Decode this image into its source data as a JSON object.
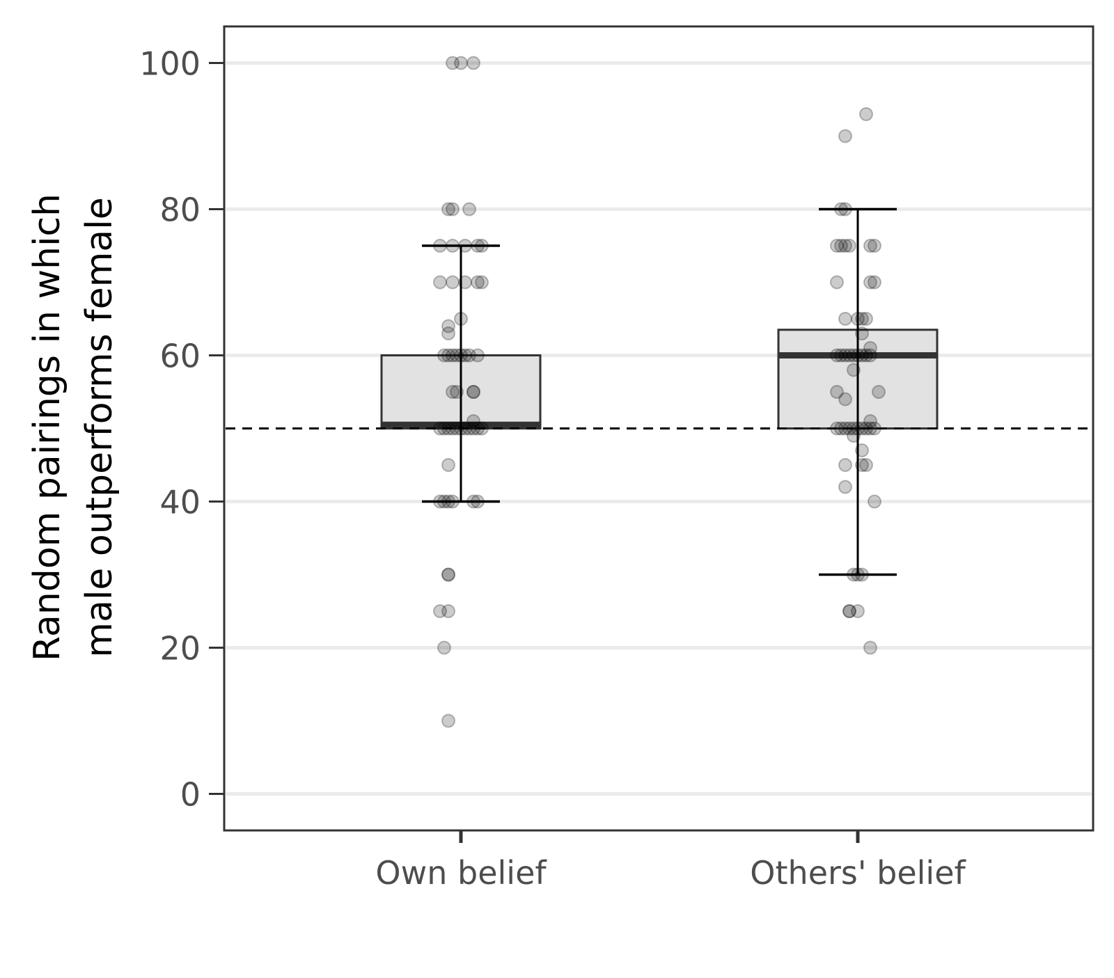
{
  "chart_data": {
    "type": "box",
    "categories": [
      "Own belief",
      "Others' belief"
    ],
    "ylabel": [
      "Random pairings in which",
      "male outperforms female"
    ],
    "xlabel": "",
    "ylim": [
      -5,
      105
    ],
    "yticks": [
      0,
      20,
      40,
      60,
      80,
      100
    ],
    "grid": "horizontal",
    "reference_line": {
      "y": 50,
      "style": "dashed"
    },
    "boxes": [
      {
        "category": "Own belief",
        "whisker_low": 40,
        "q1": 50,
        "median": 50.5,
        "q3": 60,
        "whisker_high": 75,
        "points": [
          {
            "x": -0.02,
            "y": 100
          },
          {
            "x": 0.0,
            "y": 100
          },
          {
            "x": 0.03,
            "y": 100
          },
          {
            "x": -0.03,
            "y": 80
          },
          {
            "x": -0.02,
            "y": 80
          },
          {
            "x": 0.02,
            "y": 80
          },
          {
            "x": -0.05,
            "y": 75
          },
          {
            "x": -0.02,
            "y": 75
          },
          {
            "x": 0.01,
            "y": 75
          },
          {
            "x": 0.04,
            "y": 75
          },
          {
            "x": 0.05,
            "y": 75
          },
          {
            "x": -0.05,
            "y": 70
          },
          {
            "x": -0.02,
            "y": 70
          },
          {
            "x": 0.01,
            "y": 70
          },
          {
            "x": 0.04,
            "y": 70
          },
          {
            "x": 0.05,
            "y": 70
          },
          {
            "x": 0.0,
            "y": 65
          },
          {
            "x": -0.03,
            "y": 64
          },
          {
            "x": -0.03,
            "y": 63
          },
          {
            "x": -0.04,
            "y": 60
          },
          {
            "x": -0.03,
            "y": 60
          },
          {
            "x": -0.02,
            "y": 60
          },
          {
            "x": -0.01,
            "y": 60
          },
          {
            "x": 0.0,
            "y": 60
          },
          {
            "x": 0.01,
            "y": 60
          },
          {
            "x": 0.02,
            "y": 60
          },
          {
            "x": 0.04,
            "y": 60
          },
          {
            "x": -0.02,
            "y": 55
          },
          {
            "x": -0.01,
            "y": 55
          },
          {
            "x": 0.03,
            "y": 55
          },
          {
            "x": 0.03,
            "y": 55
          },
          {
            "x": 0.03,
            "y": 51
          },
          {
            "x": -0.05,
            "y": 50
          },
          {
            "x": -0.04,
            "y": 50
          },
          {
            "x": -0.03,
            "y": 50
          },
          {
            "x": -0.02,
            "y": 50
          },
          {
            "x": -0.01,
            "y": 50
          },
          {
            "x": 0.0,
            "y": 50
          },
          {
            "x": 0.01,
            "y": 50
          },
          {
            "x": 0.02,
            "y": 50
          },
          {
            "x": 0.03,
            "y": 50
          },
          {
            "x": 0.04,
            "y": 50
          },
          {
            "x": 0.05,
            "y": 50
          },
          {
            "x": -0.03,
            "y": 45
          },
          {
            "x": -0.05,
            "y": 40
          },
          {
            "x": -0.04,
            "y": 40
          },
          {
            "x": -0.03,
            "y": 40
          },
          {
            "x": -0.02,
            "y": 40
          },
          {
            "x": 0.03,
            "y": 40
          },
          {
            "x": 0.04,
            "y": 40
          },
          {
            "x": -0.03,
            "y": 30
          },
          {
            "x": -0.03,
            "y": 30
          },
          {
            "x": -0.05,
            "y": 25
          },
          {
            "x": -0.03,
            "y": 25
          },
          {
            "x": -0.04,
            "y": 20
          },
          {
            "x": -0.03,
            "y": 10
          }
        ]
      },
      {
        "category": "Others' belief",
        "whisker_low": 30,
        "q1": 50,
        "median": 60,
        "q3": 63.5,
        "whisker_high": 80,
        "points": [
          {
            "x": 0.02,
            "y": 93
          },
          {
            "x": -0.03,
            "y": 90
          },
          {
            "x": -0.04,
            "y": 80
          },
          {
            "x": -0.03,
            "y": 80
          },
          {
            "x": -0.05,
            "y": 75
          },
          {
            "x": -0.04,
            "y": 75
          },
          {
            "x": -0.03,
            "y": 75
          },
          {
            "x": -0.02,
            "y": 75
          },
          {
            "x": 0.03,
            "y": 75
          },
          {
            "x": 0.04,
            "y": 75
          },
          {
            "x": -0.05,
            "y": 70
          },
          {
            "x": 0.03,
            "y": 70
          },
          {
            "x": 0.04,
            "y": 70
          },
          {
            "x": -0.03,
            "y": 65
          },
          {
            "x": 0.0,
            "y": 65
          },
          {
            "x": 0.01,
            "y": 65
          },
          {
            "x": 0.02,
            "y": 65
          },
          {
            "x": 0.01,
            "y": 63
          },
          {
            "x": 0.03,
            "y": 61
          },
          {
            "x": -0.05,
            "y": 60
          },
          {
            "x": -0.04,
            "y": 60
          },
          {
            "x": -0.03,
            "y": 60
          },
          {
            "x": -0.02,
            "y": 60
          },
          {
            "x": -0.01,
            "y": 60
          },
          {
            "x": 0.0,
            "y": 60
          },
          {
            "x": 0.01,
            "y": 60
          },
          {
            "x": 0.02,
            "y": 60
          },
          {
            "x": 0.03,
            "y": 60
          },
          {
            "x": -0.01,
            "y": 58
          },
          {
            "x": -0.05,
            "y": 55
          },
          {
            "x": 0.05,
            "y": 55
          },
          {
            "x": -0.03,
            "y": 54
          },
          {
            "x": 0.03,
            "y": 51
          },
          {
            "x": -0.05,
            "y": 50
          },
          {
            "x": -0.04,
            "y": 50
          },
          {
            "x": -0.03,
            "y": 50
          },
          {
            "x": -0.02,
            "y": 50
          },
          {
            "x": -0.01,
            "y": 50
          },
          {
            "x": 0.0,
            "y": 50
          },
          {
            "x": 0.01,
            "y": 50
          },
          {
            "x": 0.02,
            "y": 50
          },
          {
            "x": 0.03,
            "y": 50
          },
          {
            "x": 0.04,
            "y": 50
          },
          {
            "x": -0.01,
            "y": 49
          },
          {
            "x": 0.01,
            "y": 47
          },
          {
            "x": -0.03,
            "y": 45
          },
          {
            "x": 0.01,
            "y": 45
          },
          {
            "x": 0.02,
            "y": 45
          },
          {
            "x": -0.03,
            "y": 42
          },
          {
            "x": 0.04,
            "y": 40
          },
          {
            "x": -0.01,
            "y": 30
          },
          {
            "x": 0.0,
            "y": 30
          },
          {
            "x": 0.01,
            "y": 30
          },
          {
            "x": -0.02,
            "y": 25
          },
          {
            "x": -0.02,
            "y": 25
          },
          {
            "x": 0.0,
            "y": 25
          },
          {
            "x": 0.03,
            "y": 20
          }
        ]
      }
    ]
  },
  "colors": {
    "box_fill": "#e2e2e2",
    "box_stroke": "#333333",
    "grid": "#ebebeb",
    "panel_border": "#333333",
    "point_fill": "rgba(0,0,0,0.2)",
    "point_stroke": "rgba(0,0,0,0.25)",
    "whisker": "#000000",
    "reference_line": "#000000",
    "tick_label": "#4d4d4d"
  }
}
